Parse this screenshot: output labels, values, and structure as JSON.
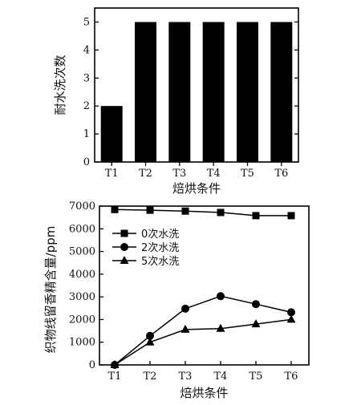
{
  "chart_data": [
    {
      "type": "bar",
      "categories": [
        "T1",
        "T2",
        "T3",
        "T4",
        "T5",
        "T6"
      ],
      "values": [
        2,
        5,
        5,
        5,
        5,
        5
      ],
      "xlabel": "焙烘条件",
      "ylabel": "耐水洗次数",
      "ylim": [
        0,
        5.5
      ],
      "yticks": [
        0,
        1,
        2,
        3,
        4,
        5
      ],
      "bar_color": "#000000"
    },
    {
      "type": "line",
      "categories": [
        "T1",
        "T2",
        "T3",
        "T4",
        "T5",
        "T6"
      ],
      "xlabel": "焙烘条件",
      "ylabel": "织物线留香精含量/ppm",
      "ylim": [
        0,
        7000
      ],
      "yticks": [
        0,
        1000,
        2000,
        3000,
        4000,
        5000,
        6000,
        7000
      ],
      "legend_position": "top-left",
      "series": [
        {
          "name": "0次水洗",
          "marker": "square",
          "values": [
            6850,
            6820,
            6780,
            6720,
            6580,
            6580
          ]
        },
        {
          "name": "2次水洗",
          "marker": "circle",
          "values": [
            0,
            1280,
            2480,
            3030,
            2680,
            2320
          ]
        },
        {
          "name": "5次水洗",
          "marker": "triangle",
          "values": [
            0,
            1000,
            1560,
            1600,
            1800,
            2000
          ]
        }
      ]
    }
  ]
}
